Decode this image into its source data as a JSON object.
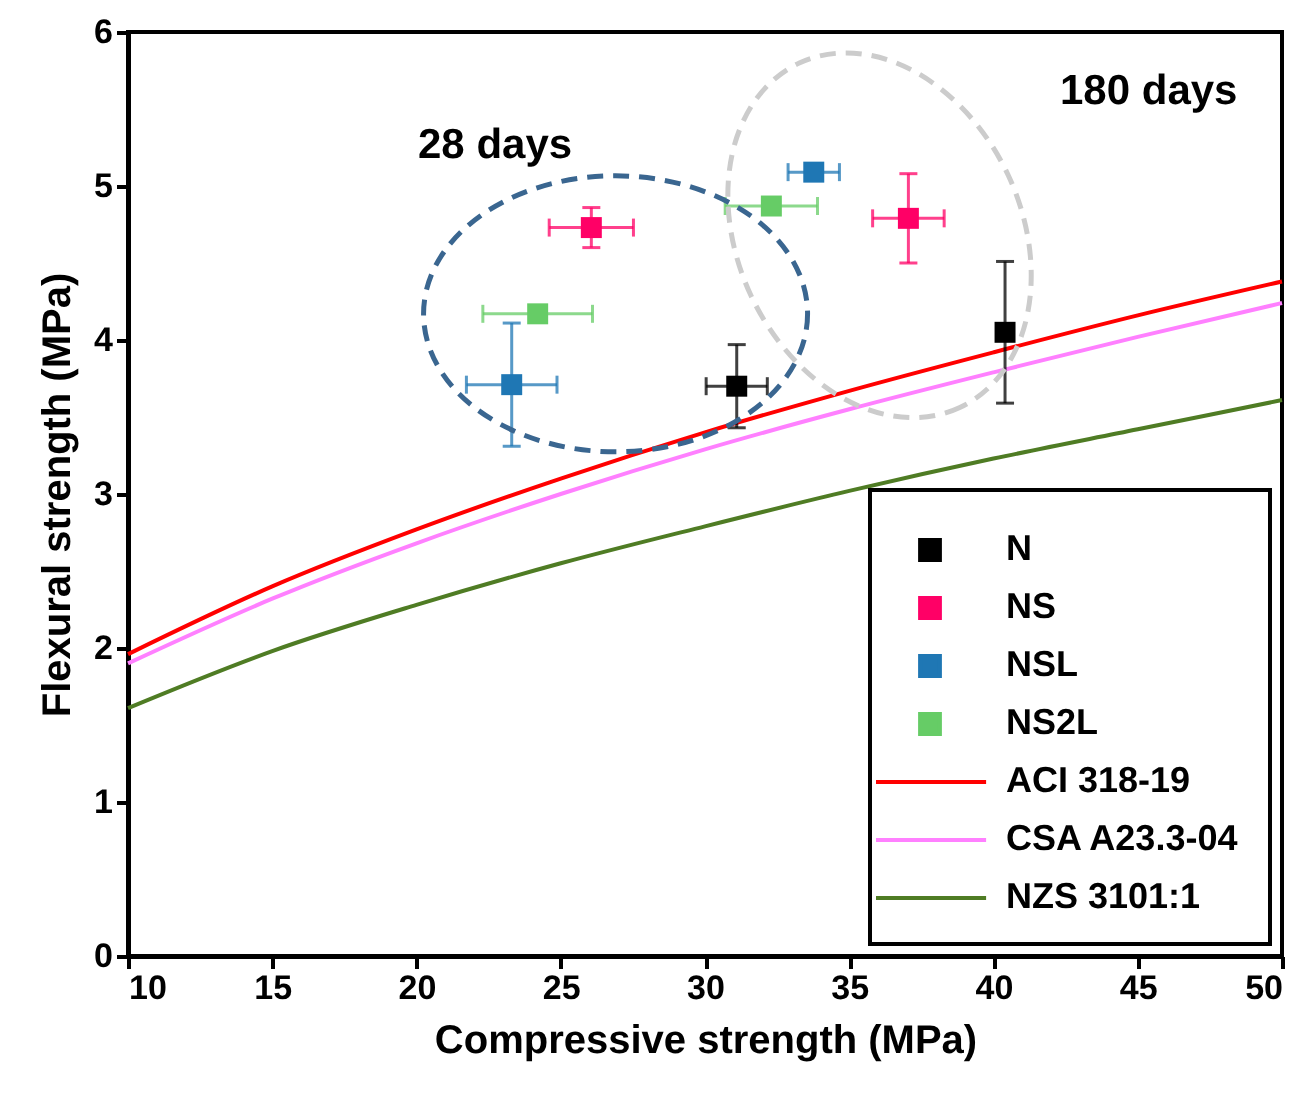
{
  "chart_data": {
    "type": "scatter",
    "xlabel": "Compressive strength (MPa)",
    "ylabel": "Flexural strength (MPa)",
    "xlim": [
      10,
      50
    ],
    "xticks": [
      10,
      15,
      20,
      25,
      30,
      35,
      40,
      45,
      50
    ],
    "ylim": [
      0,
      6
    ],
    "yticks": [
      0,
      1,
      2,
      3,
      4,
      5,
      6
    ],
    "grid": false,
    "legend": "bottom right",
    "annotations": [
      "28 days",
      "180 days"
    ],
    "series": [
      {
        "name": "N",
        "color": "#000000",
        "marker": "square",
        "x": [
          31.1,
          40.4
        ],
        "values": [
          3.7,
          4.05
        ],
        "errors": [
          0.27,
          0.46
        ],
        "xerrors": [
          1.06,
          null
        ]
      },
      {
        "name": "NS",
        "color": "#ff0066",
        "marker": "square",
        "x": [
          26.06,
          37.05
        ],
        "values": [
          4.73,
          4.79
        ],
        "errors": [
          0.13,
          0.29
        ],
        "xerrors": [
          1.46,
          1.24
        ]
      },
      {
        "name": "NSL",
        "color": "#1f77b4",
        "marker": "square",
        "x": [
          23.3,
          33.77
        ],
        "values": [
          3.71,
          5.09
        ],
        "errors": [
          0.4,
          null
        ],
        "xerrors": [
          1.57,
          0.89
        ]
      },
      {
        "name": "NS2L",
        "color": "#66cc66",
        "marker": "square",
        "x": [
          24.2,
          32.3
        ],
        "values": [
          4.17,
          4.87
        ],
        "errors": [
          null,
          null
        ],
        "xerrors": [
          1.9,
          1.6
        ]
      },
      {
        "name": "ACI 318-19",
        "type": "line",
        "color": "#ff0000",
        "x": [
          10,
          15,
          20,
          25,
          30,
          35,
          40,
          45,
          50
        ],
        "values": [
          1.96,
          2.4,
          2.77,
          3.1,
          3.4,
          3.67,
          3.92,
          4.16,
          4.38
        ]
      },
      {
        "name": "CSA A23.3-04",
        "type": "line",
        "color": "#ff80ff",
        "x": [
          10,
          15,
          20,
          25,
          30,
          35,
          40,
          45,
          50
        ],
        "values": [
          1.9,
          2.32,
          2.68,
          3.0,
          3.29,
          3.55,
          3.79,
          4.02,
          4.24
        ]
      },
      {
        "name": "NZS 3101:1",
        "type": "line",
        "color": "#4f7c24",
        "x": [
          10,
          15,
          20,
          25,
          30,
          35,
          40,
          45,
          50
        ],
        "values": [
          1.61,
          1.98,
          2.28,
          2.55,
          2.79,
          3.02,
          3.23,
          3.42,
          3.61
        ]
      }
    ]
  }
}
